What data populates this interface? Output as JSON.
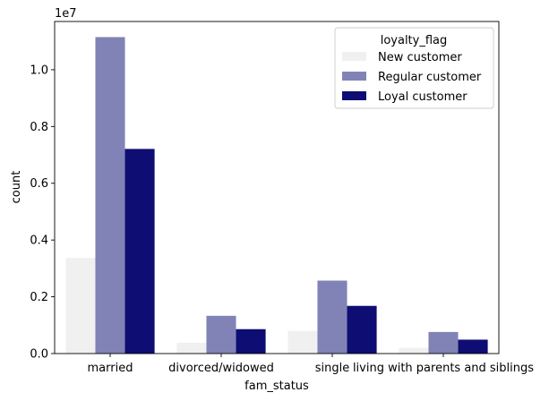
{
  "chart_data": {
    "type": "bar",
    "categories": [
      "married",
      "divorced/widowed",
      "single",
      "living with parents and siblings"
    ],
    "series": [
      {
        "name": "New customer",
        "color": "#f0f0f0",
        "values": [
          3.37,
          0.38,
          0.8,
          0.2
        ]
      },
      {
        "name": "Regular customer",
        "color": "#8183b6",
        "values": [
          11.15,
          1.33,
          2.57,
          0.76
        ]
      },
      {
        "name": "Loyal customer",
        "color": "#0d0d73",
        "values": [
          7.21,
          0.86,
          1.68,
          0.49
        ]
      }
    ],
    "xlabel": "fam_status",
    "ylabel": "count",
    "offset_text": "1e7",
    "yticks": [
      0.0,
      0.2,
      0.4,
      0.6,
      0.8,
      1.0
    ],
    "ytick_labels": [
      "0.0",
      "0.2",
      "0.4",
      "0.6",
      "0.8",
      "1.0"
    ],
    "ylim": [
      0,
      11.7
    ],
    "legend_title": "loyalty_flag",
    "legend_position": "top-right",
    "grid": false
  }
}
